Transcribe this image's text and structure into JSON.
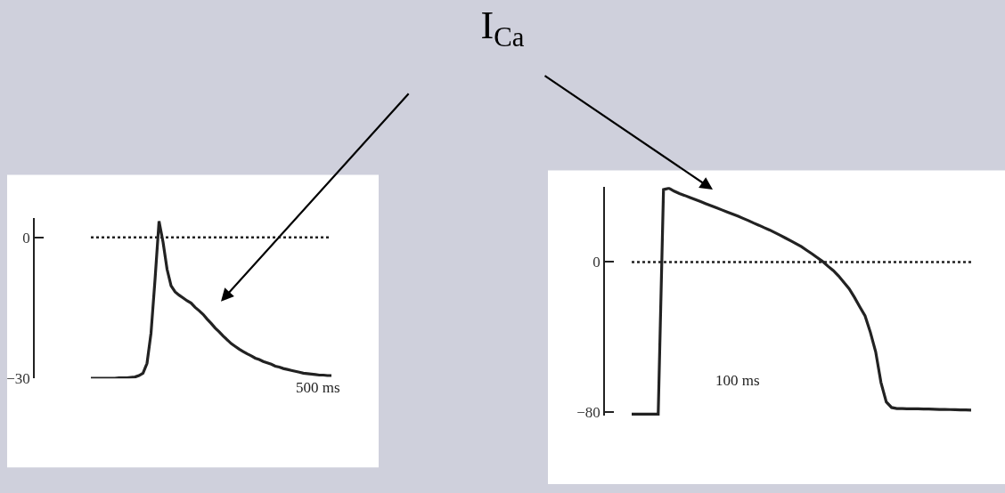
{
  "chart_data": [
    {
      "type": "line",
      "categories": [
        null,
        null,
        null,
        null,
        null,
        null,
        null,
        null,
        null,
        null,
        null,
        null,
        null,
        null,
        null,
        null,
        null,
        null,
        null,
        null,
        null,
        null,
        null,
        null,
        null,
        null,
        null,
        null,
        null,
        null,
        null,
        null,
        null,
        null,
        null,
        null,
        null,
        null,
        null,
        null,
        null,
        null,
        null,
        null,
        null,
        null,
        null,
        null,
        null,
        null,
        null,
        null,
        null,
        null,
        null,
        null,
        null,
        null,
        null,
        null,
        null
      ],
      "series": [
        {
          "color": "#222222",
          "values": [
            -30.0,
            -30.0,
            -30.0,
            -30.0,
            -30.0,
            -30.0,
            -30.0,
            -29.9,
            -29.9,
            -29.9,
            -29.8,
            -29.7,
            -29.4,
            -28.9,
            -26.8,
            -20.4,
            -9.0,
            3.4,
            -1.0,
            -6.8,
            -10.3,
            -11.6,
            -12.3,
            -12.9,
            -13.5,
            -14.0,
            -14.9,
            -15.6,
            -16.4,
            -17.4,
            -18.3,
            -19.3,
            -20.1,
            -21.0,
            -21.8,
            -22.6,
            -23.2,
            -23.8,
            -24.3,
            -24.8,
            -25.2,
            -25.7,
            -26.0,
            -26.4,
            -26.7,
            -27.0,
            -27.4,
            -27.6,
            -27.9,
            -28.1,
            -28.3,
            -28.5,
            -28.7,
            -28.9,
            -29.0,
            -29.1,
            -29.2,
            -29.3,
            -29.3,
            -29.4,
            -29.4
          ]
        }
      ],
      "ylim": [
        -30,
        4
      ],
      "yticks": [
        {
          "value": 0,
          "label": "0"
        },
        {
          "value": -30,
          "label": "−30"
        }
      ],
      "tick_labels": "y",
      "grid": false,
      "line_style": "solid",
      "ref_lines": [
        {
          "axis": "y",
          "value": 0,
          "line_style": "dotted",
          "color": "#222222"
        }
      ],
      "annotations": [
        "500 ms"
      ]
    },
    {
      "type": "line",
      "title": "I$_{Ca}$",
      "categories": [
        null,
        null,
        null,
        null,
        null,
        null,
        null,
        null,
        null,
        null,
        null,
        null,
        null,
        null,
        null,
        null,
        null,
        null,
        null,
        null,
        null,
        null,
        null,
        null,
        null,
        null,
        null,
        null,
        null,
        null,
        null,
        null,
        null,
        null,
        null,
        null,
        null,
        null,
        null,
        null,
        null,
        null,
        null,
        null,
        null,
        null,
        null,
        null,
        null,
        null,
        null,
        null,
        null,
        null,
        null,
        null,
        null,
        null,
        null,
        null,
        null,
        null,
        null,
        null,
        null
      ],
      "series": [
        {
          "color": "#222222",
          "values": [
            -81,
            -81,
            -81,
            -81,
            -81,
            -81,
            38.6,
            39.4,
            37.8,
            36.5,
            35.5,
            34.4,
            33.3,
            32.2,
            31.1,
            30.0,
            28.9,
            27.8,
            26.7,
            25.6,
            24.5,
            23.3,
            22.1,
            20.8,
            19.6,
            18.3,
            17.1,
            15.7,
            14.3,
            12.8,
            11.3,
            9.8,
            8.2,
            6.3,
            4.4,
            2.4,
            0.3,
            -2.2,
            -4.5,
            -7.4,
            -10.8,
            -14.2,
            -18.8,
            -23.8,
            -28.7,
            -37.4,
            -47.8,
            -64.2,
            -74.5,
            -77.5,
            -78.1,
            -78.1,
            -78.2,
            -78.2,
            -78.2,
            -78.3,
            -78.3,
            -78.4,
            -78.5,
            -78.5,
            -78.6,
            -78.7,
            -78.8,
            -78.8,
            -78.9
          ]
        }
      ],
      "ylim": [
        -82,
        40
      ],
      "yticks": [
        {
          "value": 0,
          "label": "0"
        },
        {
          "value": -80,
          "label": "−80"
        }
      ],
      "tick_labels": "y",
      "grid": false,
      "line_style": "solid",
      "ref_lines": [
        {
          "axis": "y",
          "value": 0,
          "line_style": "dotted",
          "color": "#222222"
        }
      ],
      "annotations": [
        "100 ms"
      ]
    }
  ]
}
